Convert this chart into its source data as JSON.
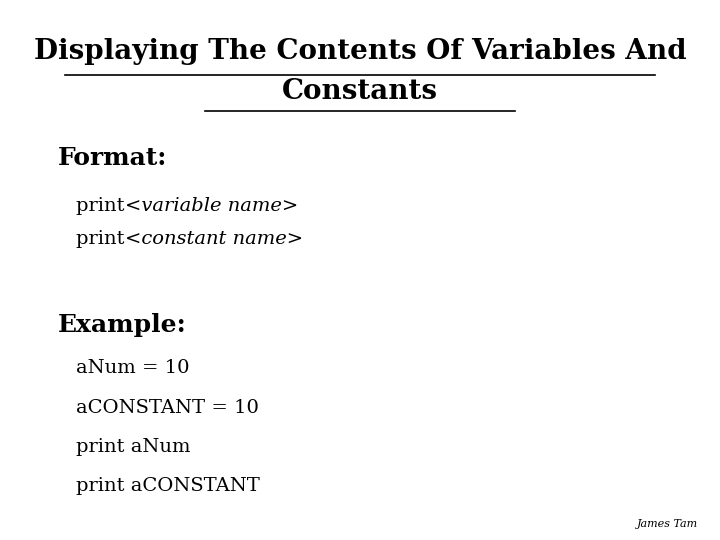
{
  "title_line1": "Displaying The Contents Of Variables And",
  "title_line2": "Constants",
  "background_color": "#ffffff",
  "text_color": "#000000",
  "format_label": "Format:",
  "format_line1_prefix": "print ",
  "format_line1_italic": "<variable name>",
  "format_line2_prefix": "print ",
  "format_line2_italic": "<constant name>",
  "example_label": "Example:",
  "example_lines": [
    "aNum = 10",
    "aCONSTANT = 10",
    "print aNum",
    "print aCONSTANT"
  ],
  "footer": "James Tam",
  "title_fontsize": 20,
  "section_fontsize": 18,
  "body_fontsize": 14,
  "footer_fontsize": 8
}
